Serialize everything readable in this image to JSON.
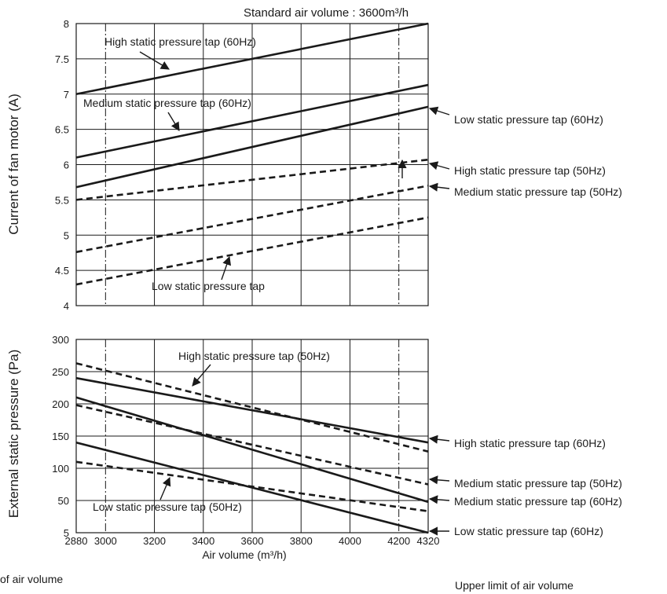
{
  "chart_data": [
    {
      "type": "line",
      "ylabel": "Current of fan motor (A)",
      "xlim": [
        2880,
        4320
      ],
      "ylim": [
        4,
        8
      ],
      "x_ticks": [
        3000,
        3200,
        3400,
        3600,
        3800,
        4000,
        4200
      ],
      "y_ticks": [
        "4",
        "4.5",
        "5",
        "5.5",
        "6",
        "6.5",
        "7",
        "7.5",
        "8"
      ],
      "grid": true,
      "vertical_limit_lines": [
        3000,
        4200
      ],
      "header": "Standard air volume : 3600m³/h",
      "series": [
        {
          "name": "High static pressure tap (60Hz)",
          "style": "solid",
          "x": [
            2880,
            4320
          ],
          "y": [
            7.0,
            8.0
          ]
        },
        {
          "name": "Medium static pressure tap (60Hz)",
          "style": "solid",
          "x": [
            2880,
            4320
          ],
          "y": [
            6.1,
            7.13
          ]
        },
        {
          "name": "Low static pressure tap (60Hz)",
          "style": "solid",
          "x": [
            2880,
            4320
          ],
          "y": [
            5.68,
            6.82
          ]
        },
        {
          "name": "High static pressure tap (50Hz)",
          "style": "dashed",
          "x": [
            2880,
            4320
          ],
          "y": [
            5.5,
            6.07
          ]
        },
        {
          "name": "Medium static pressure tap (50Hz)",
          "style": "dashed",
          "x": [
            2880,
            4320
          ],
          "y": [
            4.76,
            5.7
          ]
        },
        {
          "name": "Low static pressure tap",
          "style": "dashed",
          "x": [
            2880,
            4320
          ],
          "y": [
            4.3,
            5.25
          ]
        }
      ]
    },
    {
      "type": "line",
      "xlabel": "Air volume (m³/h)",
      "ylabel": "External static pressure (Pa)",
      "xlim": [
        2880,
        4320
      ],
      "ylim": [
        5,
        300
      ],
      "x_ticks": [
        2880,
        3000,
        3200,
        3400,
        3600,
        3800,
        4000,
        4200,
        4320
      ],
      "y_ticks": [
        "5",
        "50",
        "100",
        "150",
        "200",
        "250",
        "300"
      ],
      "grid": true,
      "vertical_limit_lines": [
        3000,
        4200
      ],
      "series": [
        {
          "name": "High static pressure tap (60Hz)",
          "style": "solid",
          "x": [
            2880,
            4320
          ],
          "y": [
            240,
            140
          ]
        },
        {
          "name": "High static pressure tap (50Hz)",
          "style": "dashed",
          "x": [
            2880,
            4320
          ],
          "y": [
            263,
            126
          ]
        },
        {
          "name": "Medium static pressure tap (60Hz)",
          "style": "solid",
          "x": [
            2880,
            4320
          ],
          "y": [
            210,
            48
          ]
        },
        {
          "name": "Medium static pressure tap (50Hz)",
          "style": "dashed",
          "x": [
            2880,
            4320
          ],
          "y": [
            198,
            75
          ]
        },
        {
          "name": "Low static pressure tap (60Hz)",
          "style": "solid",
          "x": [
            2880,
            4320
          ],
          "y": [
            140,
            5
          ]
        },
        {
          "name": "Low static pressure tap (50Hz)",
          "style": "dashed",
          "x": [
            2880,
            4320
          ],
          "y": [
            110,
            35
          ]
        }
      ]
    }
  ],
  "footnotes": {
    "left": "of air volume",
    "right": "Upper limit of air volume"
  }
}
